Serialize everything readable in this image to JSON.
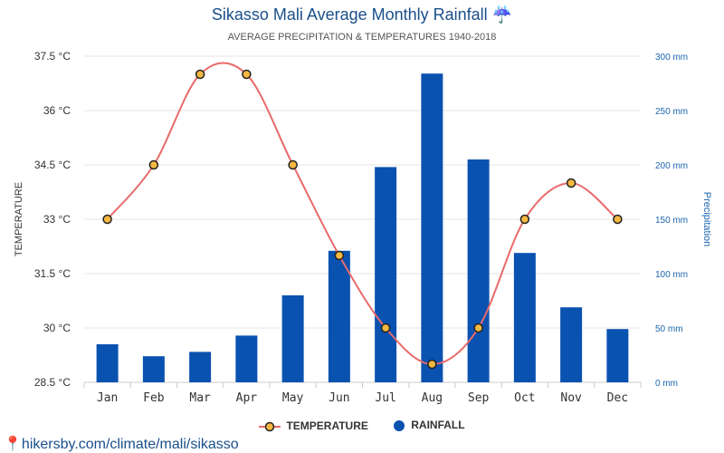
{
  "title": "Sikasso Mali Average Monthly Rainfall",
  "title_icon": "umbrella-icon",
  "subtitle": "AVERAGE PRECIPITATION & TEMPERATURES 1940-2018",
  "legend": {
    "temperature": "TEMPERATURE",
    "rainfall": "RAINFALL"
  },
  "footer": "hikersby.com/climate/mali/sikasso",
  "colors": {
    "title": "#1a4f8b",
    "bar": "#0a52b0",
    "line": "#e86a6a",
    "marker_fill": "#f5b942",
    "right_axis": "#1a66b0"
  },
  "chart_data": {
    "type": "bar",
    "categories": [
      "Jan",
      "Feb",
      "Mar",
      "Apr",
      "May",
      "Jun",
      "Jul",
      "Aug",
      "Sep",
      "Oct",
      "Nov",
      "Dec"
    ],
    "series": [
      {
        "name": "RAINFALL",
        "type": "bar",
        "axis": "right",
        "values": [
          35,
          24,
          28,
          43,
          80,
          121,
          198,
          284,
          205,
          119,
          69,
          49
        ]
      },
      {
        "name": "TEMPERATURE",
        "type": "line",
        "axis": "left",
        "values": [
          33,
          34.5,
          37,
          37,
          34.5,
          32,
          30,
          29,
          30,
          33,
          34,
          33
        ]
      }
    ],
    "left_axis": {
      "label": "TEMPERATURE",
      "range": [
        28.5,
        37.5
      ],
      "ticks": [
        "28.5 °C",
        "30 °C",
        "31.5 °C",
        "33 °C",
        "34.5 °C",
        "36 °C",
        "37.5 °C"
      ]
    },
    "right_axis": {
      "label": "Precipitation",
      "range": [
        0,
        300
      ],
      "ticks": [
        "0 mm",
        "50 mm",
        "100 mm",
        "150 mm",
        "200 mm",
        "250 mm",
        "300 mm"
      ]
    },
    "grid": true,
    "legend_position": "bottom"
  }
}
